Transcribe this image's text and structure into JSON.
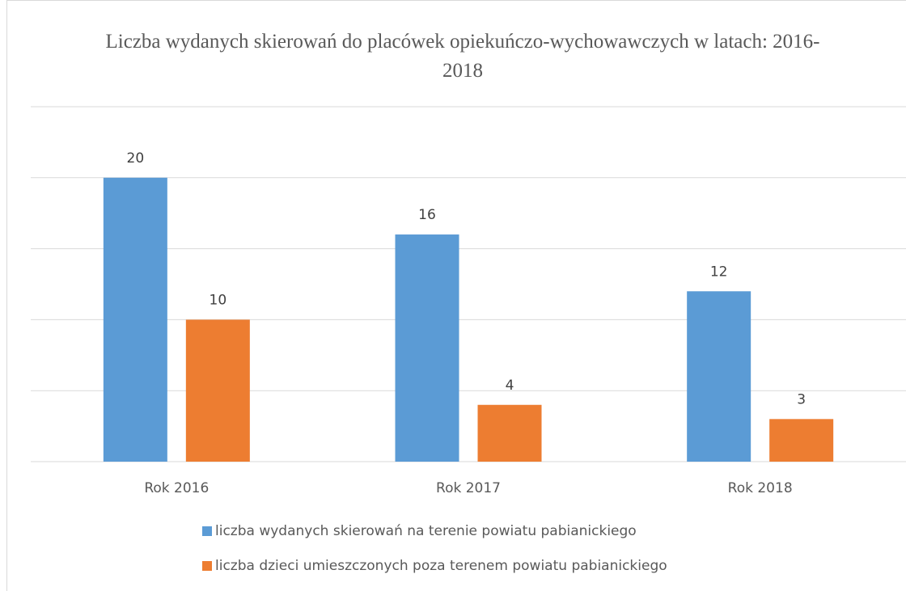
{
  "chart_data": {
    "type": "bar",
    "title": "Liczba  wydanych skierowań do placówek opiekuńczo-wychowawczych w latach:  2016-2018",
    "categories": [
      "Rok 2016",
      "Rok 2017",
      "Rok 2018"
    ],
    "series": [
      {
        "name": "liczba wydanych skierowań na terenie powiatu pabianickiego",
        "color": "#5b9bd5",
        "values": [
          20,
          16,
          12
        ]
      },
      {
        "name": "liczba dzieci umieszczonych poza terenem powiatu pabianickiego",
        "color": "#ed7d31",
        "values": [
          10,
          4,
          3
        ]
      }
    ],
    "ylim": [
      0,
      25
    ],
    "yticks": [
      0,
      5,
      10,
      15,
      20,
      25
    ],
    "grid": true,
    "legend": "bottom"
  }
}
